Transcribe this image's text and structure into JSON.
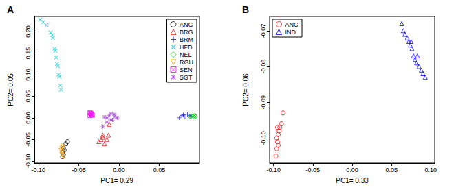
{
  "chart_data": [
    {
      "type": "scatter",
      "title": "A",
      "x_label": "PC1= 0.29",
      "y_label": "PC2= 0.05",
      "xlim": [
        -0.105,
        0.1
      ],
      "ylim": [
        -0.105,
        0.235
      ],
      "xticks": [
        {
          "value": -0.1,
          "label": "-0.10"
        },
        -0.05,
        {
          "value": 0,
          "label": "0.00"
        },
        0.05
      ],
      "yticks": [
        {
          "value": -0.1,
          "label": "-0.10"
        },
        -0.05,
        {
          "value": 0,
          "label": "0.00"
        },
        0.05,
        {
          "value": 0.1,
          "label": "0.10"
        },
        0.15,
        {
          "value": 0.2,
          "label": "0.20"
        }
      ],
      "legend": "top-right",
      "grid": false,
      "series": [
        {
          "name": "ANG",
          "color": "#000000",
          "marker": "circle",
          "x": [
            -0.07,
            -0.069,
            -0.07,
            -0.068,
            -0.069,
            -0.066,
            -0.064
          ],
          "values": [
            -0.09,
            -0.085,
            -0.08,
            -0.075,
            -0.07,
            -0.06,
            -0.055
          ]
        },
        {
          "name": "BRG",
          "color": "#e41a1c",
          "marker": "triangle",
          "x": [
            -0.025,
            -0.022,
            -0.02,
            -0.018,
            -0.015,
            -0.013,
            -0.012,
            -0.02
          ],
          "values": [
            -0.055,
            -0.05,
            -0.045,
            -0.06,
            -0.05,
            -0.04,
            -0.015,
            -0.04
          ]
        },
        {
          "name": "BRM",
          "color": "#0000cd",
          "marker": "plus",
          "x": [
            0.075,
            0.078,
            0.082,
            0.085,
            0.088,
            0.08,
            0.09
          ],
          "values": [
            0.0,
            0.005,
            0.002,
            0.008,
            0.005,
            0.007,
            0.004
          ]
        },
        {
          "name": "HFD",
          "color": "#00cdcd",
          "marker": "x",
          "x": [
            -0.098,
            -0.094,
            -0.09,
            -0.085,
            -0.083,
            -0.082,
            -0.08,
            -0.079,
            -0.078,
            -0.077,
            -0.076,
            -0.075,
            -0.074,
            -0.073,
            -0.072
          ],
          "values": [
            0.228,
            0.222,
            0.215,
            0.198,
            0.192,
            0.185,
            0.16,
            0.155,
            0.14,
            0.125,
            0.12,
            0.1,
            0.095,
            0.075,
            0.065
          ]
        },
        {
          "name": "NEL",
          "color": "#00cd00",
          "marker": "diamond",
          "x": [
            0.088,
            0.09,
            0.092,
            0.094,
            0.095,
            0.093
          ],
          "values": [
            0.003,
            0.005,
            0.004,
            0.006,
            0.003,
            0.002
          ]
        },
        {
          "name": "RGU",
          "color": "#ffa500",
          "marker": "triangle-down",
          "x": [
            -0.071,
            -0.07,
            -0.071,
            -0.07,
            -0.072,
            -0.069
          ],
          "values": [
            -0.085,
            -0.08,
            -0.07,
            -0.065,
            -0.075,
            -0.09
          ]
        },
        {
          "name": "SEN",
          "color": "#ff00ff",
          "marker": "square-x",
          "x": [
            -0.036,
            -0.035,
            -0.034,
            -0.036,
            -0.033
          ],
          "values": [
            0.005,
            0.01,
            0.008,
            0.012,
            0.006
          ]
        },
        {
          "name": "SGT",
          "color": "#9932cc",
          "marker": "asterisk",
          "x": [
            -0.015,
            -0.012,
            -0.01,
            -0.008,
            -0.005,
            -0.02,
            -0.015,
            -0.002,
            -0.01,
            -0.018,
            -0.006
          ],
          "values": [
            0.0,
            0.005,
            0.01,
            -0.005,
            0.003,
            -0.02,
            -0.01,
            0.0,
            -0.005,
            0.002,
            0.008
          ]
        }
      ]
    },
    {
      "type": "scatter",
      "title": "B",
      "x_label": "PC1= 0.33",
      "y_label": "PC2= 0.06",
      "xlim": [
        -0.105,
        0.105
      ],
      "ylim": [
        -0.107,
        -0.066
      ],
      "xticks": [
        {
          "value": -0.1,
          "label": "-0.10"
        },
        -0.05,
        {
          "value": 0,
          "label": "0.00"
        },
        0.05,
        {
          "value": 0.1,
          "label": "0.10"
        }
      ],
      "yticks": [
        {
          "value": -0.1,
          "label": "-0.10"
        },
        -0.09,
        -0.08,
        -0.07
      ],
      "legend": "top-left",
      "grid": false,
      "series": [
        {
          "name": "ANG",
          "color": "#ff0000",
          "marker": "circle",
          "x": [
            -0.097,
            -0.096,
            -0.095,
            -0.096,
            -0.094,
            -0.093,
            -0.095,
            -0.092,
            -0.09,
            -0.088,
            -0.094
          ],
          "values": [
            -0.105,
            -0.103,
            -0.101,
            -0.1,
            -0.099,
            -0.098,
            -0.097,
            -0.097,
            -0.096,
            -0.093,
            -0.102
          ]
        },
        {
          "name": "IND",
          "color": "#0000ff",
          "marker": "triangle",
          "x": [
            0.063,
            0.065,
            0.067,
            0.07,
            0.072,
            0.074,
            0.076,
            0.078,
            0.08,
            0.082,
            0.085,
            0.088,
            0.09,
            0.093,
            0.075,
            0.083
          ],
          "values": [
            -0.068,
            -0.07,
            -0.071,
            -0.072,
            -0.073,
            -0.074,
            -0.075,
            -0.077,
            -0.078,
            -0.079,
            -0.08,
            -0.081,
            -0.082,
            -0.083,
            -0.073,
            -0.077
          ]
        }
      ]
    }
  ]
}
